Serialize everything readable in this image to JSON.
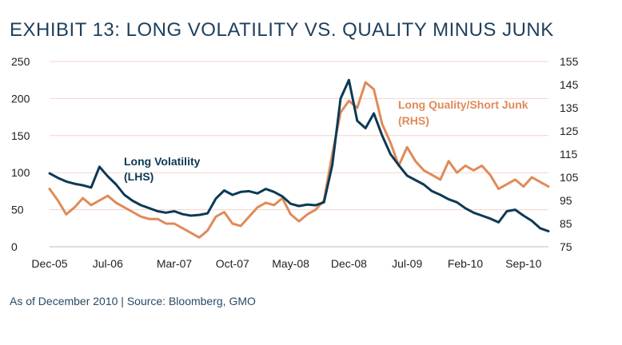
{
  "chart_data": {
    "type": "line",
    "title": "EXHIBIT 13: LONG VOLATILITY VS. QUALITY MINUS JUNK",
    "footnote": "As of December 2010 | Source: Bloomberg, GMO",
    "x_tick_labels": [
      "Dec-05",
      "Jul-06",
      "Mar-07",
      "Oct-07",
      "May-08",
      "Dec-08",
      "Jul-09",
      "Feb-10",
      "Sep-10"
    ],
    "x_range": [
      "2005-12",
      "2010-12"
    ],
    "y_left": {
      "min": 0,
      "max": 250,
      "ticks": [
        "0",
        "50",
        "100",
        "150",
        "200",
        "250"
      ]
    },
    "y_right": {
      "min": 75,
      "max": 155,
      "ticks": [
        "75",
        "85",
        "95",
        "105",
        "115",
        "125",
        "135",
        "145",
        "155"
      ]
    },
    "grid": "horizontal",
    "colors": {
      "navy": "#0c3a55",
      "orange": "#e08a58",
      "grid": "#f3d6cf"
    },
    "series": [
      {
        "name": "Long Volatility (LHS)",
        "label_lines": [
          "Long Volatility",
          "(LHS)"
        ],
        "axis": "left",
        "x": [
          "2005-12",
          "2006-01",
          "2006-02",
          "2006-03",
          "2006-04",
          "2006-05",
          "2006-06",
          "2006-07",
          "2006-08",
          "2006-09",
          "2006-10",
          "2006-11",
          "2006-12",
          "2007-01",
          "2007-02",
          "2007-03",
          "2007-04",
          "2007-05",
          "2007-06",
          "2007-07",
          "2007-08",
          "2007-09",
          "2007-10",
          "2007-11",
          "2007-12",
          "2008-01",
          "2008-02",
          "2008-03",
          "2008-04",
          "2008-05",
          "2008-06",
          "2008-07",
          "2008-08",
          "2008-09",
          "2008-10",
          "2008-11",
          "2008-12",
          "2009-01",
          "2009-02",
          "2009-03",
          "2009-04",
          "2009-05",
          "2009-06",
          "2009-07",
          "2009-08",
          "2009-09",
          "2009-10",
          "2009-11",
          "2009-12",
          "2010-01",
          "2010-02",
          "2010-03",
          "2010-04",
          "2010-05",
          "2010-06",
          "2010-07",
          "2010-08",
          "2010-09",
          "2010-10",
          "2010-11",
          "2010-12"
        ],
        "values": [
          99,
          93,
          88,
          85,
          83,
          80,
          108,
          95,
          84,
          70,
          62,
          56,
          52,
          48,
          46,
          48,
          44,
          42,
          43,
          45,
          65,
          76,
          70,
          74,
          75,
          72,
          78,
          74,
          68,
          58,
          55,
          57,
          56,
          60,
          110,
          200,
          225,
          170,
          160,
          180,
          150,
          125,
          110,
          96,
          90,
          84,
          75,
          70,
          64,
          60,
          52,
          46,
          42,
          38,
          33,
          48,
          50,
          42,
          35,
          25,
          21
        ]
      },
      {
        "name": "Long Quality/Short Junk (RHS)",
        "label_lines": [
          "Long Quality/Short Junk",
          "(RHS)"
        ],
        "axis": "right",
        "x": [
          "2005-12",
          "2006-01",
          "2006-02",
          "2006-03",
          "2006-04",
          "2006-05",
          "2006-06",
          "2006-07",
          "2006-08",
          "2006-09",
          "2006-10",
          "2006-11",
          "2006-12",
          "2007-01",
          "2007-02",
          "2007-03",
          "2007-04",
          "2007-05",
          "2007-06",
          "2007-07",
          "2007-08",
          "2007-09",
          "2007-10",
          "2007-11",
          "2007-12",
          "2008-01",
          "2008-02",
          "2008-03",
          "2008-04",
          "2008-05",
          "2008-06",
          "2008-07",
          "2008-08",
          "2008-09",
          "2008-10",
          "2008-11",
          "2008-12",
          "2009-01",
          "2009-02",
          "2009-03",
          "2009-04",
          "2009-05",
          "2009-06",
          "2009-07",
          "2009-08",
          "2009-09",
          "2009-10",
          "2009-11",
          "2009-12",
          "2010-01",
          "2010-02",
          "2010-03",
          "2010-04",
          "2010-05",
          "2010-06",
          "2010-07",
          "2010-08",
          "2010-09",
          "2010-10",
          "2010-11",
          "2010-12"
        ],
        "values": [
          100,
          95,
          89,
          92,
          96,
          93,
          95,
          97,
          94,
          92,
          90,
          88,
          87,
          87,
          85,
          85,
          83,
          81,
          79,
          82,
          88,
          90,
          85,
          84,
          88,
          92,
          94,
          93,
          96,
          89,
          86,
          89,
          91,
          95,
          115,
          133,
          138,
          135,
          146,
          143,
          128,
          120,
          110,
          118,
          112,
          108,
          106,
          104,
          112,
          107,
          110,
          108,
          110,
          106,
          100,
          102,
          104,
          101,
          105,
          103,
          101
        ]
      }
    ]
  }
}
